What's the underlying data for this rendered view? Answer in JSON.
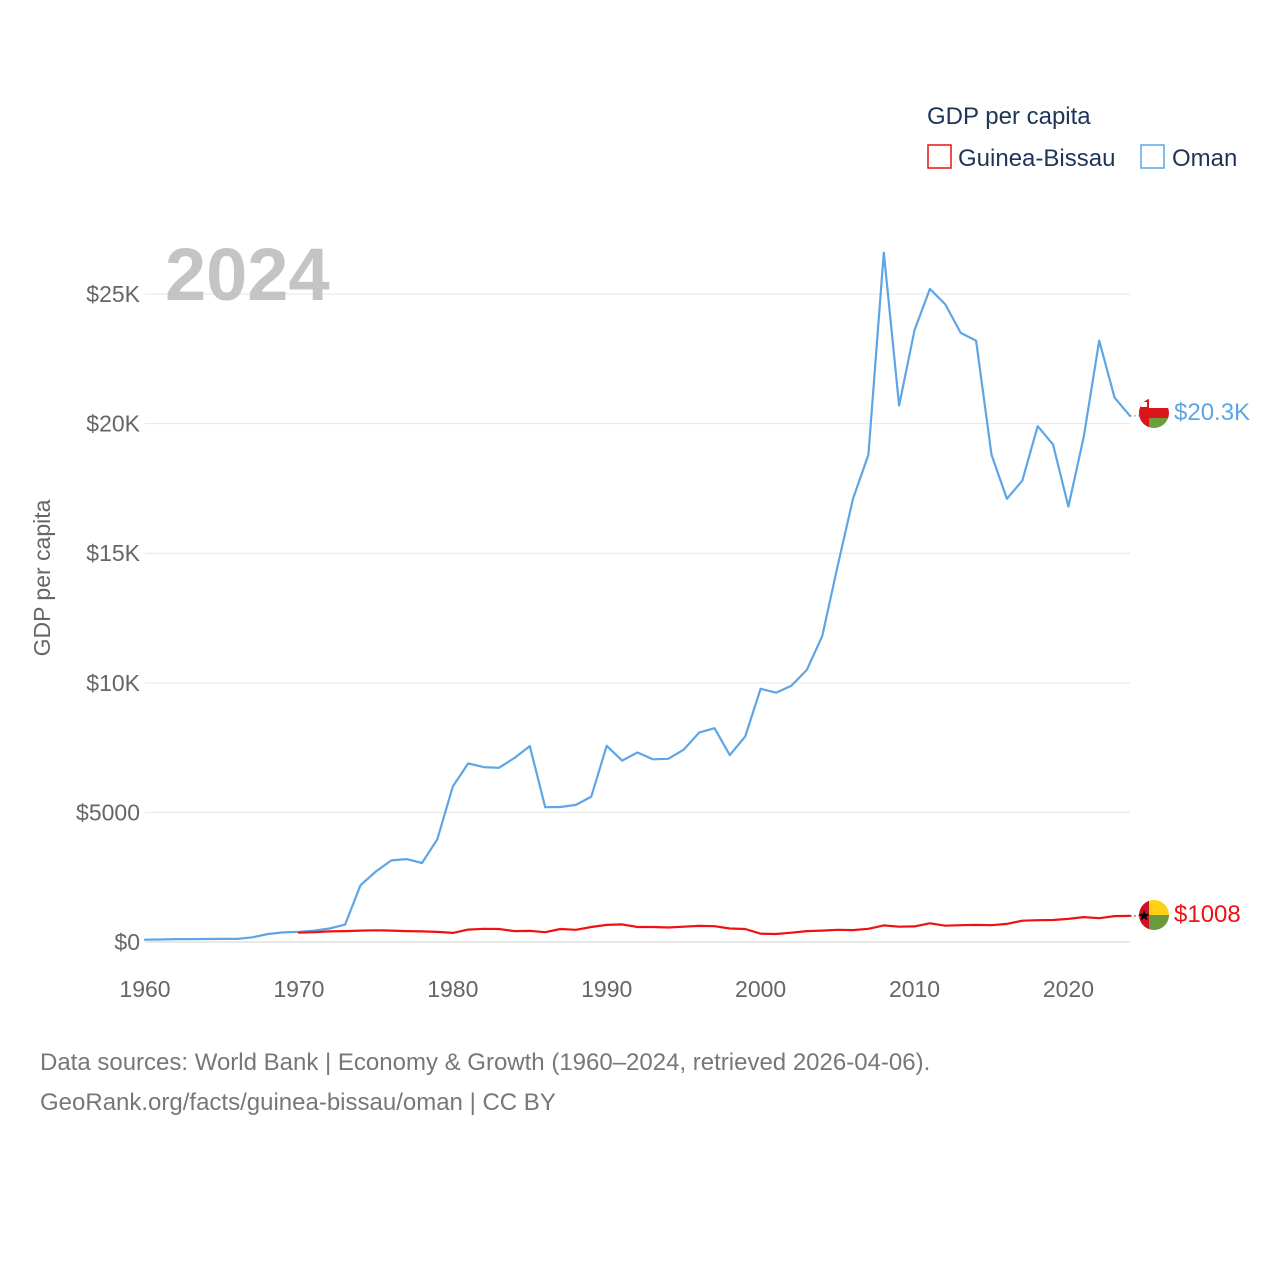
{
  "chart_data": {
    "type": "line",
    "title": "",
    "year_label": "2024",
    "xlabel": "",
    "ylabel": "GDP per capita",
    "xlim": [
      1960,
      2024
    ],
    "ylim": [
      0,
      26700
    ],
    "x_ticks": [
      1960,
      1970,
      1980,
      1990,
      2000,
      2010,
      2020
    ],
    "x_tick_labels": [
      "1960",
      "1970",
      "1980",
      "1990",
      "2000",
      "2010",
      "2020"
    ],
    "y_ticks": [
      0,
      5000,
      10000,
      15000,
      20000,
      25000
    ],
    "y_tick_labels": [
      "$0",
      "$5000",
      "$10K",
      "$15K",
      "$20K",
      "$25K"
    ],
    "grid": true,
    "legend_title": "GDP per capita",
    "legend_position": "top-right",
    "series": [
      {
        "name": "Guinea-Bissau",
        "color": "#ee1111",
        "end_label": "$1008",
        "x": [
          1970,
          1971,
          1972,
          1973,
          1974,
          1975,
          1976,
          1977,
          1978,
          1979,
          1980,
          1981,
          1982,
          1983,
          1984,
          1985,
          1986,
          1987,
          1988,
          1989,
          1990,
          1991,
          1992,
          1993,
          1994,
          1995,
          1996,
          1997,
          1998,
          1999,
          2000,
          2001,
          2002,
          2003,
          2004,
          2005,
          2006,
          2007,
          2008,
          2009,
          2010,
          2011,
          2012,
          2013,
          2014,
          2015,
          2016,
          2017,
          2018,
          2019,
          2020,
          2021,
          2022,
          2023,
          2024
        ],
        "values": [
          360,
          380,
          410,
          420,
          440,
          450,
          440,
          420,
          410,
          390,
          350,
          480,
          510,
          500,
          420,
          430,
          380,
          500,
          470,
          580,
          660,
          680,
          580,
          580,
          560,
          590,
          620,
          610,
          520,
          500,
          320,
          310,
          360,
          420,
          440,
          470,
          460,
          510,
          640,
          590,
          600,
          720,
          630,
          650,
          660,
          650,
          700,
          820,
          840,
          850,
          890,
          960,
          920,
          1000,
          1008
        ]
      },
      {
        "name": "Oman",
        "color": "#5ea5e6",
        "end_label": "$20.3K",
        "x": [
          1960,
          1961,
          1962,
          1963,
          1964,
          1965,
          1966,
          1967,
          1968,
          1969,
          1970,
          1971,
          1972,
          1973,
          1974,
          1975,
          1976,
          1977,
          1978,
          1979,
          1980,
          1981,
          1982,
          1983,
          1984,
          1985,
          1986,
          1987,
          1988,
          1989,
          1990,
          1991,
          1992,
          1993,
          1994,
          1995,
          1996,
          1997,
          1998,
          1999,
          2000,
          2001,
          2002,
          2003,
          2004,
          2005,
          2006,
          2007,
          2008,
          2009,
          2010,
          2011,
          2012,
          2013,
          2014,
          2015,
          2016,
          2017,
          2018,
          2019,
          2020,
          2021,
          2022,
          2023,
          2024
        ],
        "values": [
          90,
          95,
          110,
          110,
          115,
          120,
          120,
          180,
          310,
          370,
          390,
          440,
          520,
          670,
          2190,
          2720,
          3150,
          3200,
          3050,
          3970,
          6000,
          6890,
          6750,
          6720,
          7100,
          7560,
          5200,
          5210,
          5290,
          5610,
          7570,
          7000,
          7310,
          7050,
          7070,
          7420,
          8080,
          8250,
          7210,
          7930,
          9770,
          9620,
          9890,
          10500,
          11800,
          14500,
          17100,
          18800,
          26600,
          20700,
          23600,
          25200,
          24600,
          23500,
          23200,
          18800,
          17100,
          17800,
          19900,
          19200,
          16800,
          19500,
          23200,
          21000,
          20300
        ]
      }
    ],
    "source_line1": "Data sources: World Bank | Economy & Growth (1960–2024, retrieved 2026-04-06).",
    "source_line2": "GeoRank.org/facts/guinea-bissau/oman | CC BY"
  }
}
